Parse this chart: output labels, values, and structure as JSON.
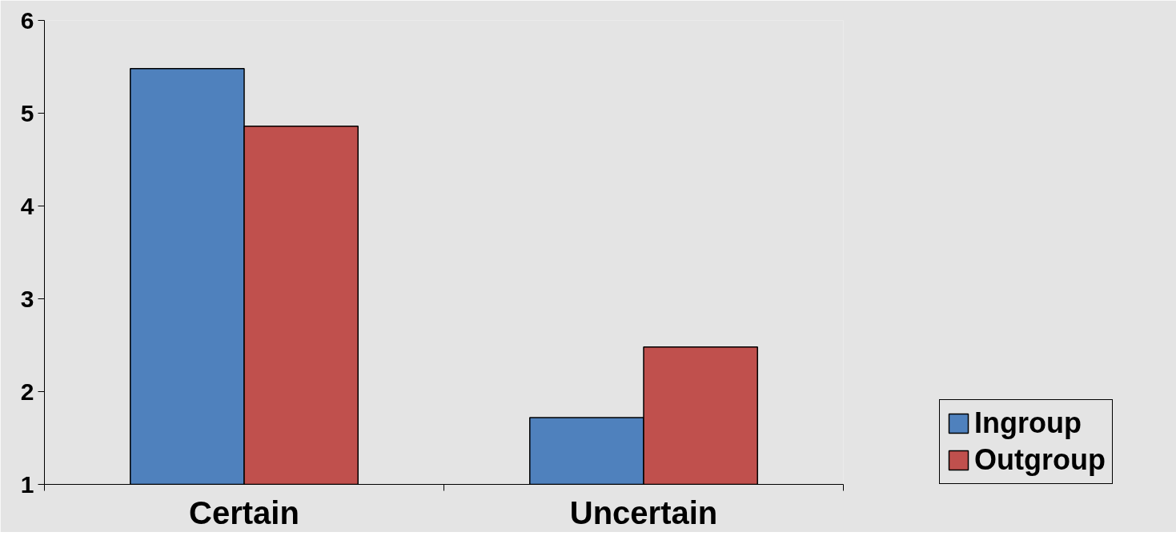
{
  "chart_data": {
    "type": "bar",
    "categories": [
      "Certain",
      "Uncertain"
    ],
    "series": [
      {
        "name": "Ingroup",
        "color": "#4f81bd",
        "values": [
          5.48,
          1.72
        ]
      },
      {
        "name": "Outgroup",
        "color": "#c0504d",
        "values": [
          4.86,
          2.48
        ]
      }
    ],
    "ylim": [
      1,
      6
    ],
    "yticks": [
      1,
      2,
      3,
      4,
      5,
      6
    ],
    "legend": "right"
  }
}
